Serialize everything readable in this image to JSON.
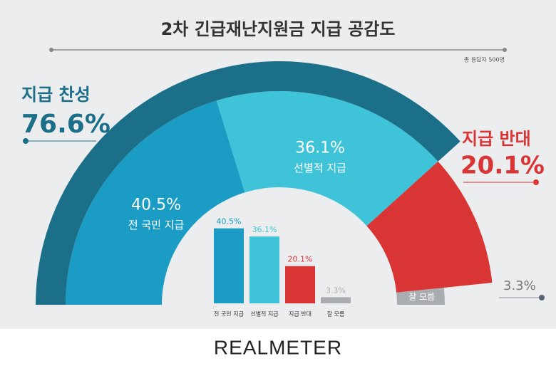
{
  "chart_data": {
    "type": "pie",
    "title": "2차 긴급재난지원금 지급 공감도",
    "subtitle": "총 응답자 500명",
    "categories": [
      "전 국민 지급",
      "선별적 지급",
      "지급 반대",
      "잘 모름"
    ],
    "values": [
      40.5,
      36.1,
      20.1,
      3.3
    ],
    "value_labels": [
      "40.5%",
      "36.1%",
      "20.1%",
      "3.3%"
    ],
    "colors": [
      "#1a9cc4",
      "#3ec3d8",
      "#d93535",
      "#a9adb1"
    ],
    "groups": {
      "names": [
        "지급 찬성",
        "지급 반대"
      ],
      "values": [
        76.6,
        20.1
      ],
      "value_labels": [
        "76.6%",
        "20.1%"
      ],
      "colors": [
        "#1b6f88",
        "#d93535"
      ]
    },
    "footer": "REALMETER"
  }
}
